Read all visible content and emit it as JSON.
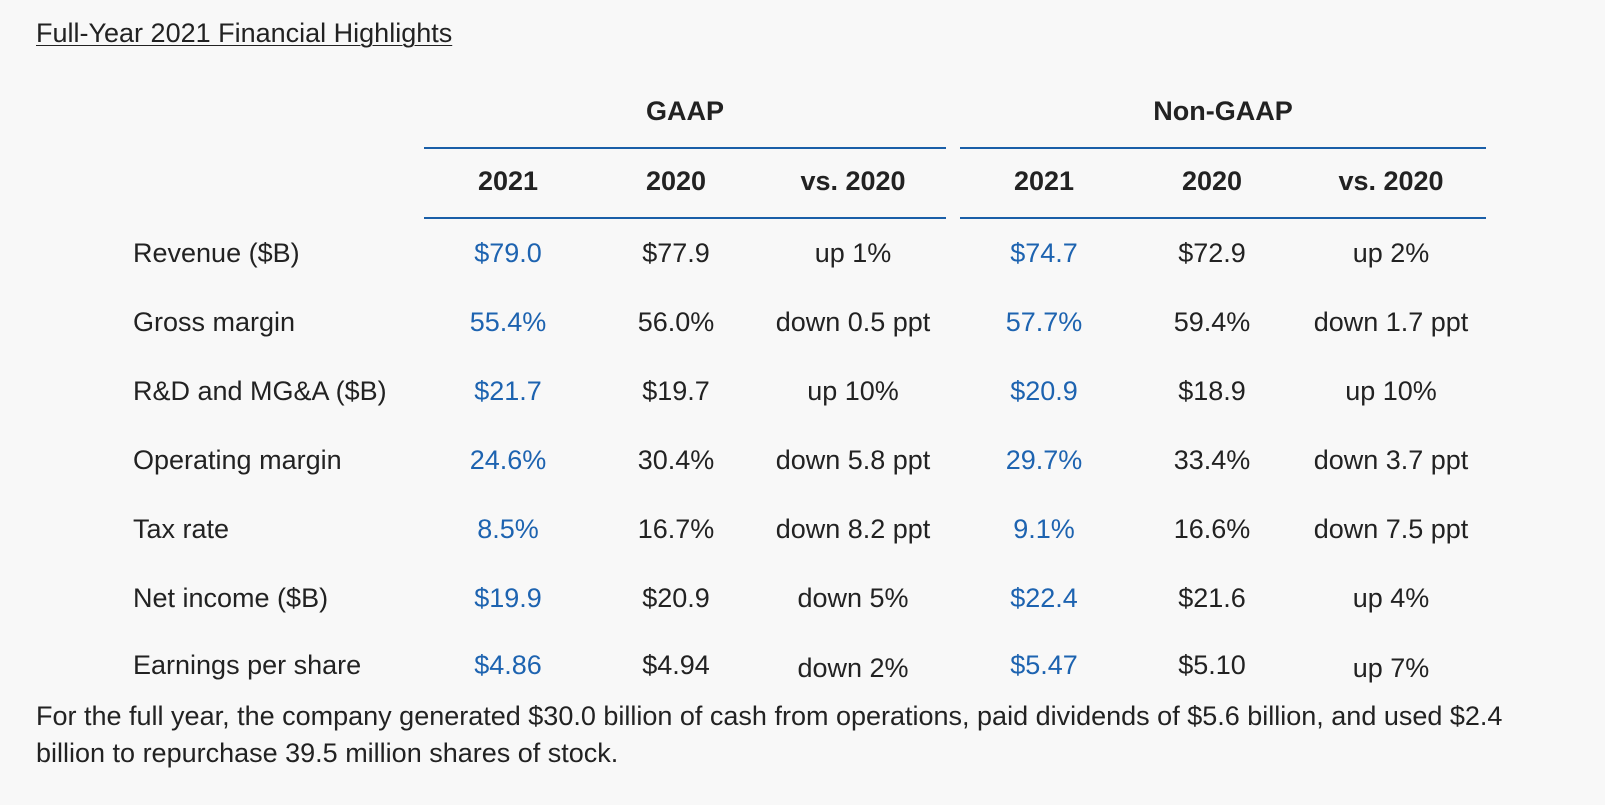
{
  "title": "Full-Year 2021 Financial Highlights",
  "groups": {
    "gaap": "GAAP",
    "non_gaap": "Non-GAAP"
  },
  "columns": [
    "2021",
    "2020",
    "vs. 2020",
    "2021",
    "2020",
    "vs. 2020"
  ],
  "rows": [
    {
      "label": "Revenue ($B)",
      "values": [
        "$79.0",
        "$77.9",
        "up 1%",
        "$74.7",
        "$72.9",
        "up 2%"
      ]
    },
    {
      "label": "Gross margin",
      "values": [
        "55.4%",
        "56.0%",
        "down 0.5 ppt",
        "57.7%",
        "59.4%",
        "down 1.7 ppt"
      ]
    },
    {
      "label": "R&D and MG&A ($B)",
      "values": [
        "$21.7",
        "$19.7",
        "up 10%",
        "$20.9",
        "$18.9",
        "up 10%"
      ]
    },
    {
      "label": "Operating margin",
      "values": [
        "24.6%",
        "30.4%",
        "down 5.8 ppt",
        "29.7%",
        "33.4%",
        "down 3.7 ppt"
      ]
    },
    {
      "label": "Tax rate",
      "values": [
        "8.5%",
        "16.7%",
        "down 8.2 ppt",
        "9.1%",
        "16.6%",
        "down 7.5 ppt"
      ]
    },
    {
      "label": "Net income ($B)",
      "values": [
        "$19.9",
        "$20.9",
        "down 5%",
        "$22.4",
        "$21.6",
        "up 4%"
      ]
    },
    {
      "label": "Earnings per share",
      "values": [
        "$4.86",
        "$4.94",
        "down 2%",
        "$5.47",
        "$5.10",
        "up 7%"
      ]
    }
  ],
  "footer": "For the full year, the company generated $30.0 billion of cash from operations, paid dividends of $5.6 billion, and used $2.4 billion to repurchase 39.5 million shares of stock.",
  "colors": {
    "highlight": "#1d63b0",
    "rule": "#1a5fa8",
    "text": "#222222",
    "background": "#f8f8f8"
  }
}
